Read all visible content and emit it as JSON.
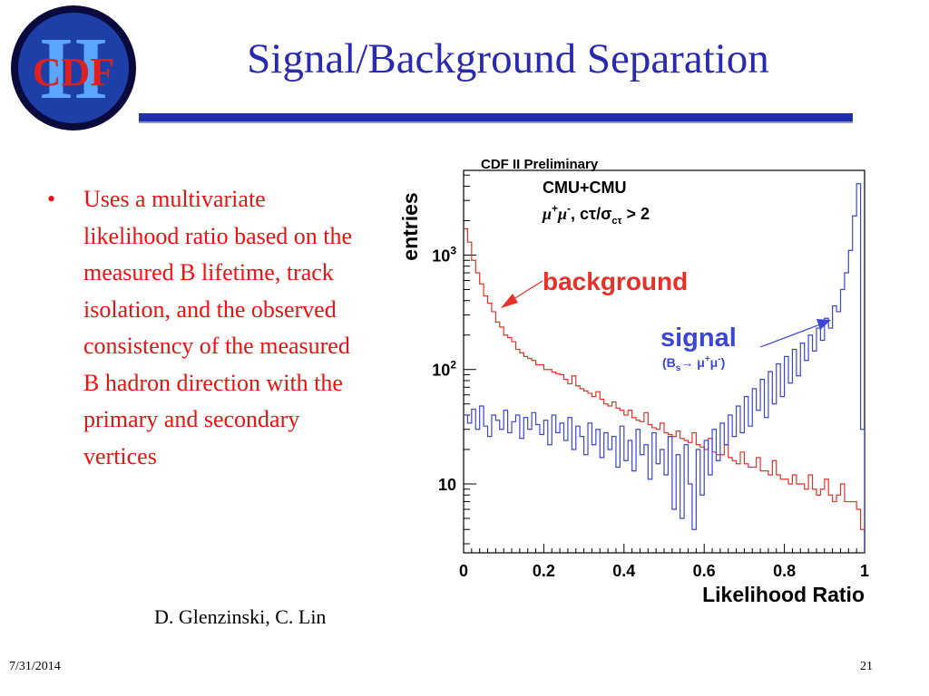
{
  "slide": {
    "title": "Signal/Background Separation",
    "logo": {
      "label": "CDF",
      "numeral": "II"
    },
    "bullets": [
      "Uses a multivariate likelihood ratio based on the measured B lifetime, track isolation, and the observed consistency of the measured B hadron direction with the primary and secondary vertices"
    ],
    "credit": "D. Glenzinski, C. Lin",
    "footer": {
      "date": "7/31/2014",
      "page": "21"
    },
    "colors": {
      "title": "#2a2ab0",
      "bullet_text": "#ee1111",
      "rule": "#1f2fa8"
    }
  },
  "chart_data": {
    "type": "line",
    "title": "CDF II Preliminary",
    "xlabel": "Likelihood Ratio",
    "ylabel": "entries",
    "xlim": [
      0,
      1
    ],
    "ylim": [
      2.5,
      5500
    ],
    "y_scale": "log",
    "x_ticks": [
      "0",
      "0.2",
      "0.4",
      "0.6",
      "0.8",
      "1"
    ],
    "y_ticks": [
      {
        "value": 10,
        "base": "10",
        "exp": ""
      },
      {
        "value": 100,
        "base": "10",
        "exp": "2"
      },
      {
        "value": 1000,
        "base": "10",
        "exp": "3"
      }
    ],
    "annotations": {
      "detector": "CMU+CMU",
      "cut": {
        "mu": "μ",
        "plus": "+",
        "minus": "-",
        "tail": ",  cτ/σ",
        "sub": "cτ",
        "end": " > 2"
      },
      "background_label": "background",
      "signal_label": "signal",
      "signal_decay": {
        "open": "(B",
        "sub": "s",
        "arrow": "→ μ",
        "plus": "+",
        "mu2": "μ",
        "minus": "-",
        "close": ")"
      }
    },
    "bins": 100,
    "series": [
      {
        "name": "background",
        "color": "#e8302a",
        "values": [
          1700,
          1300,
          900,
          700,
          560,
          440,
          380,
          320,
          260,
          235,
          200,
          190,
          175,
          150,
          140,
          130,
          125,
          120,
          110,
          110,
          100,
          100,
          95,
          92,
          90,
          82,
          75,
          88,
          72,
          68,
          65,
          62,
          58,
          64,
          55,
          50,
          48,
          52,
          46,
          44,
          40,
          44,
          38,
          36,
          35,
          42,
          33,
          31,
          30,
          34,
          28,
          27,
          26,
          29,
          25,
          24,
          23,
          28,
          22,
          21,
          20,
          25,
          19,
          18,
          18,
          22,
          17,
          16,
          15,
          19,
          15,
          14,
          14,
          17,
          13,
          13,
          12,
          16,
          12,
          11,
          11,
          10,
          12,
          10,
          10,
          9,
          12,
          9,
          8,
          9,
          11,
          8,
          7,
          8,
          10,
          7,
          7,
          7,
          6,
          4
        ]
      },
      {
        "name": "signal",
        "color": "#3b45d6",
        "values": [
          40,
          34,
          45,
          30,
          48,
          32,
          26,
          40,
          36,
          30,
          44,
          28,
          35,
          40,
          25,
          38,
          30,
          42,
          33,
          27,
          36,
          22,
          40,
          28,
          34,
          24,
          38,
          20,
          32,
          26,
          18,
          34,
          22,
          30,
          17,
          28,
          20,
          26,
          14,
          32,
          16,
          24,
          13,
          30,
          18,
          22,
          11,
          28,
          15,
          20,
          12,
          26,
          6,
          18,
          5,
          22,
          10,
          4,
          20,
          8,
          24,
          12,
          30,
          16,
          34,
          22,
          40,
          26,
          48,
          28,
          58,
          32,
          68,
          44,
          82,
          38,
          96,
          50,
          112,
          58,
          130,
          76,
          150,
          88,
          170,
          120,
          200,
          145,
          230,
          180,
          280,
          230,
          360,
          320,
          500,
          700,
          1100,
          2200,
          4200,
          30
        ]
      }
    ]
  }
}
